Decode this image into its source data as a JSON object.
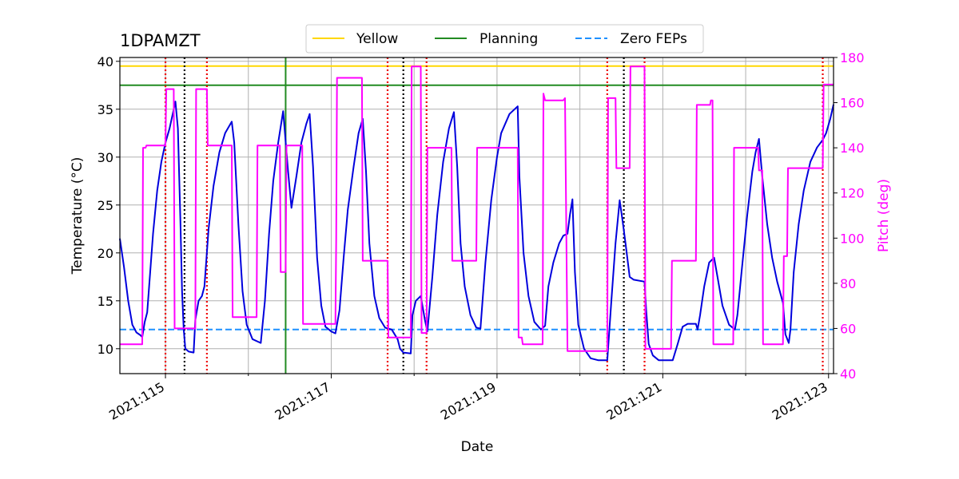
{
  "chart_data": {
    "type": "line",
    "title": "1DPAMZT",
    "xlabel": "Date",
    "ylabel": "Temperature ($^\\circ$C)",
    "ylabel_display": "Temperature (°C)",
    "ylabel2": "Pitch (deg)",
    "xlim": [
      114.45,
      123.06
    ],
    "ylim": [
      7.4,
      40.4
    ],
    "ylim2": [
      40,
      180
    ],
    "x_ticks": [
      {
        "value": 115,
        "label": "2021:115"
      },
      {
        "value": 117,
        "label": "2021:117"
      },
      {
        "value": 119,
        "label": "2021:119"
      },
      {
        "value": 121,
        "label": "2021:121"
      },
      {
        "value": 123,
        "label": "2021:123"
      }
    ],
    "y_ticks": [
      10,
      15,
      20,
      25,
      30,
      35,
      40
    ],
    "y2_ticks": [
      40,
      60,
      80,
      100,
      120,
      140,
      160,
      180
    ],
    "colors": {
      "temperature": "#0000dd",
      "pitch": "#ff00ff",
      "yellow": "#ffd700",
      "planning": "#228b22",
      "zero_feps": "#1e90ff",
      "red_vline": "#ee0000",
      "black_vline": "#000000",
      "green_vline": "#228b22",
      "grid": "#b0b0b0"
    },
    "hlines": [
      {
        "name": "Yellow",
        "value": 39.5,
        "style": "solid"
      },
      {
        "name": "Planning",
        "value": 37.5,
        "style": "solid"
      },
      {
        "name": "Zero FEPs",
        "value": 12.0,
        "style": "dashed"
      }
    ],
    "legend": {
      "placement": "top-center",
      "entries": [
        "Yellow",
        "Planning",
        "Zero FEPs"
      ]
    },
    "red_vlines": [
      115.0,
      115.5,
      117.68,
      118.15,
      120.33,
      120.78,
      122.93
    ],
    "black_vlines": [
      115.23,
      117.87,
      120.53
    ],
    "green_vlines": [
      116.45
    ],
    "series": [
      {
        "name": "Temperature",
        "axis": "left",
        "points": [
          [
            114.45,
            21.5
          ],
          [
            114.5,
            18.5
          ],
          [
            114.55,
            15.0
          ],
          [
            114.6,
            12.5
          ],
          [
            114.65,
            11.7
          ],
          [
            114.7,
            11.4
          ],
          [
            114.72,
            11.2
          ],
          [
            114.75,
            12.8
          ],
          [
            114.78,
            13.8
          ],
          [
            114.85,
            22.0
          ],
          [
            114.9,
            26.5
          ],
          [
            114.95,
            29.5
          ],
          [
            115.0,
            31.5
          ],
          [
            115.05,
            33.0
          ],
          [
            115.1,
            35.0
          ],
          [
            115.12,
            35.8
          ],
          [
            115.15,
            33.0
          ],
          [
            115.18,
            23.5
          ],
          [
            115.2,
            16.0
          ],
          [
            115.22,
            12.0
          ],
          [
            115.24,
            10.0
          ],
          [
            115.28,
            9.7
          ],
          [
            115.34,
            9.6
          ],
          [
            115.36,
            13.0
          ],
          [
            115.4,
            15.0
          ],
          [
            115.44,
            15.5
          ],
          [
            115.47,
            16.5
          ],
          [
            115.52,
            22.5
          ],
          [
            115.58,
            27.0
          ],
          [
            115.65,
            30.5
          ],
          [
            115.72,
            32.5
          ],
          [
            115.8,
            33.7
          ],
          [
            115.83,
            31.5
          ],
          [
            115.88,
            23.0
          ],
          [
            115.93,
            16.0
          ],
          [
            115.98,
            12.5
          ],
          [
            116.05,
            11.0
          ],
          [
            116.15,
            10.6
          ],
          [
            116.2,
            15.0
          ],
          [
            116.25,
            22.0
          ],
          [
            116.3,
            27.5
          ],
          [
            116.36,
            31.5
          ],
          [
            116.42,
            34.8
          ],
          [
            116.48,
            28.5
          ],
          [
            116.52,
            24.7
          ],
          [
            116.58,
            28.0
          ],
          [
            116.64,
            31.5
          ],
          [
            116.7,
            33.5
          ],
          [
            116.74,
            34.5
          ],
          [
            116.78,
            29.0
          ],
          [
            116.83,
            19.5
          ],
          [
            116.88,
            14.5
          ],
          [
            116.93,
            12.3
          ],
          [
            117.0,
            11.8
          ],
          [
            117.05,
            11.6
          ],
          [
            117.1,
            14.0
          ],
          [
            117.15,
            19.5
          ],
          [
            117.2,
            24.5
          ],
          [
            117.27,
            29.0
          ],
          [
            117.33,
            32.5
          ],
          [
            117.38,
            34.0
          ],
          [
            117.42,
            28.5
          ],
          [
            117.46,
            21.0
          ],
          [
            117.52,
            15.5
          ],
          [
            117.58,
            13.2
          ],
          [
            117.65,
            12.2
          ],
          [
            117.73,
            12.0
          ],
          [
            117.8,
            11.0
          ],
          [
            117.83,
            10.0
          ],
          [
            117.87,
            9.6
          ],
          [
            117.96,
            9.5
          ],
          [
            117.98,
            13.5
          ],
          [
            118.02,
            15.0
          ],
          [
            118.08,
            15.5
          ],
          [
            118.13,
            13.0
          ],
          [
            118.16,
            11.8
          ],
          [
            118.22,
            17.5
          ],
          [
            118.28,
            24.0
          ],
          [
            118.35,
            29.5
          ],
          [
            118.42,
            33.0
          ],
          [
            118.48,
            34.7
          ],
          [
            118.52,
            29.0
          ],
          [
            118.56,
            21.0
          ],
          [
            118.61,
            16.5
          ],
          [
            118.68,
            13.5
          ],
          [
            118.75,
            12.2
          ],
          [
            118.8,
            12.1
          ],
          [
            118.86,
            19.0
          ],
          [
            118.93,
            25.5
          ],
          [
            119.0,
            30.0
          ],
          [
            119.05,
            32.5
          ],
          [
            119.15,
            34.5
          ],
          [
            119.25,
            35.3
          ],
          [
            119.27,
            28.0
          ],
          [
            119.32,
            20.0
          ],
          [
            119.38,
            15.5
          ],
          [
            119.45,
            12.8
          ],
          [
            119.53,
            12.0
          ],
          [
            119.58,
            12.4
          ],
          [
            119.62,
            16.5
          ],
          [
            119.68,
            19.0
          ],
          [
            119.75,
            21.0
          ],
          [
            119.8,
            21.8
          ],
          [
            119.85,
            22.0
          ],
          [
            119.88,
            24.0
          ],
          [
            119.91,
            25.6
          ],
          [
            119.94,
            18.0
          ],
          [
            119.98,
            12.5
          ],
          [
            120.05,
            10.0
          ],
          [
            120.13,
            9.0
          ],
          [
            120.22,
            8.8
          ],
          [
            120.33,
            8.8
          ],
          [
            120.38,
            15.0
          ],
          [
            120.43,
            21.0
          ],
          [
            120.48,
            25.5
          ],
          [
            120.52,
            23.0
          ],
          [
            120.55,
            21.0
          ],
          [
            120.6,
            17.5
          ],
          [
            120.65,
            17.2
          ],
          [
            120.78,
            17.0
          ],
          [
            120.8,
            14.0
          ],
          [
            120.83,
            10.5
          ],
          [
            120.88,
            9.3
          ],
          [
            120.95,
            8.8
          ],
          [
            121.08,
            8.8
          ],
          [
            121.12,
            8.8
          ],
          [
            121.18,
            10.5
          ],
          [
            121.24,
            12.3
          ],
          [
            121.3,
            12.6
          ],
          [
            121.4,
            12.6
          ],
          [
            121.42,
            12.0
          ],
          [
            121.45,
            13.5
          ],
          [
            121.5,
            16.5
          ],
          [
            121.56,
            19.0
          ],
          [
            121.62,
            19.5
          ],
          [
            121.66,
            17.5
          ],
          [
            121.72,
            14.5
          ],
          [
            121.8,
            12.5
          ],
          [
            121.87,
            12.0
          ],
          [
            121.9,
            13.5
          ],
          [
            121.95,
            18.0
          ],
          [
            122.02,
            24.0
          ],
          [
            122.08,
            28.5
          ],
          [
            122.12,
            30.5
          ],
          [
            122.16,
            31.9
          ],
          [
            122.2,
            28.0
          ],
          [
            122.26,
            23.0
          ],
          [
            122.32,
            19.5
          ],
          [
            122.38,
            17.0
          ],
          [
            122.45,
            14.8
          ],
          [
            122.48,
            11.5
          ],
          [
            122.52,
            10.6
          ],
          [
            122.54,
            12.0
          ],
          [
            122.58,
            18.0
          ],
          [
            122.64,
            23.0
          ],
          [
            122.7,
            26.5
          ],
          [
            122.78,
            29.5
          ],
          [
            122.86,
            31.0
          ],
          [
            122.93,
            31.8
          ],
          [
            122.97,
            32.5
          ],
          [
            123.02,
            34.0
          ],
          [
            123.06,
            35.5
          ]
        ]
      },
      {
        "name": "Pitch",
        "axis": "right",
        "points": [
          [
            114.45,
            53
          ],
          [
            114.72,
            53
          ],
          [
            114.73,
            140
          ],
          [
            114.76,
            140
          ],
          [
            114.77,
            141
          ],
          [
            115.0,
            141
          ],
          [
            115.01,
            166
          ],
          [
            115.1,
            166
          ],
          [
            115.11,
            60
          ],
          [
            115.36,
            60
          ],
          [
            115.37,
            166
          ],
          [
            115.5,
            166
          ],
          [
            115.51,
            141
          ],
          [
            115.8,
            141
          ],
          [
            115.81,
            65
          ],
          [
            116.1,
            65
          ],
          [
            116.11,
            141
          ],
          [
            116.38,
            141
          ],
          [
            116.39,
            85
          ],
          [
            116.45,
            85
          ],
          [
            116.46,
            141
          ],
          [
            116.65,
            141
          ],
          [
            116.66,
            62
          ],
          [
            117.05,
            62
          ],
          [
            117.06,
            100
          ],
          [
            117.07,
            171
          ],
          [
            117.37,
            171
          ],
          [
            117.38,
            90
          ],
          [
            117.68,
            90
          ],
          [
            117.69,
            56
          ],
          [
            117.96,
            56
          ],
          [
            117.97,
            176
          ],
          [
            118.08,
            176
          ],
          [
            118.09,
            58
          ],
          [
            118.15,
            58
          ],
          [
            118.16,
            140
          ],
          [
            118.45,
            140
          ],
          [
            118.46,
            90
          ],
          [
            118.75,
            90
          ],
          [
            118.76,
            140
          ],
          [
            119.25,
            140
          ],
          [
            119.26,
            56
          ],
          [
            119.3,
            56
          ],
          [
            119.31,
            53
          ],
          [
            119.55,
            53
          ],
          [
            119.56,
            164
          ],
          [
            119.58,
            161
          ],
          [
            119.8,
            161
          ],
          [
            119.82,
            162
          ],
          [
            119.85,
            50
          ],
          [
            120.33,
            50
          ],
          [
            120.34,
            162
          ],
          [
            120.43,
            162
          ],
          [
            120.44,
            131
          ],
          [
            120.6,
            131
          ],
          [
            120.61,
            176
          ],
          [
            120.78,
            176
          ],
          [
            120.79,
            51
          ],
          [
            121.1,
            51
          ],
          [
            121.11,
            90
          ],
          [
            121.2,
            90
          ],
          [
            121.22,
            90
          ],
          [
            121.23,
            90
          ],
          [
            121.24,
            90
          ],
          [
            121.25,
            90
          ],
          [
            121.26,
            90
          ],
          [
            121.27,
            90
          ],
          [
            121.28,
            90
          ],
          [
            121.3,
            90
          ],
          [
            121.31,
            90
          ],
          [
            121.32,
            90
          ],
          [
            121.35,
            90
          ],
          [
            121.4,
            90
          ],
          [
            121.41,
            159
          ],
          [
            121.57,
            159
          ],
          [
            121.58,
            161
          ],
          [
            121.6,
            161
          ],
          [
            121.61,
            53
          ],
          [
            121.85,
            53
          ],
          [
            121.86,
            140
          ],
          [
            122.15,
            140
          ],
          [
            122.16,
            130
          ],
          [
            122.2,
            130
          ],
          [
            122.21,
            53
          ],
          [
            122.45,
            53
          ],
          [
            122.46,
            92
          ],
          [
            122.5,
            92
          ],
          [
            122.51,
            131
          ],
          [
            122.93,
            131
          ],
          [
            122.94,
            168
          ],
          [
            123.06,
            168
          ]
        ]
      }
    ]
  }
}
